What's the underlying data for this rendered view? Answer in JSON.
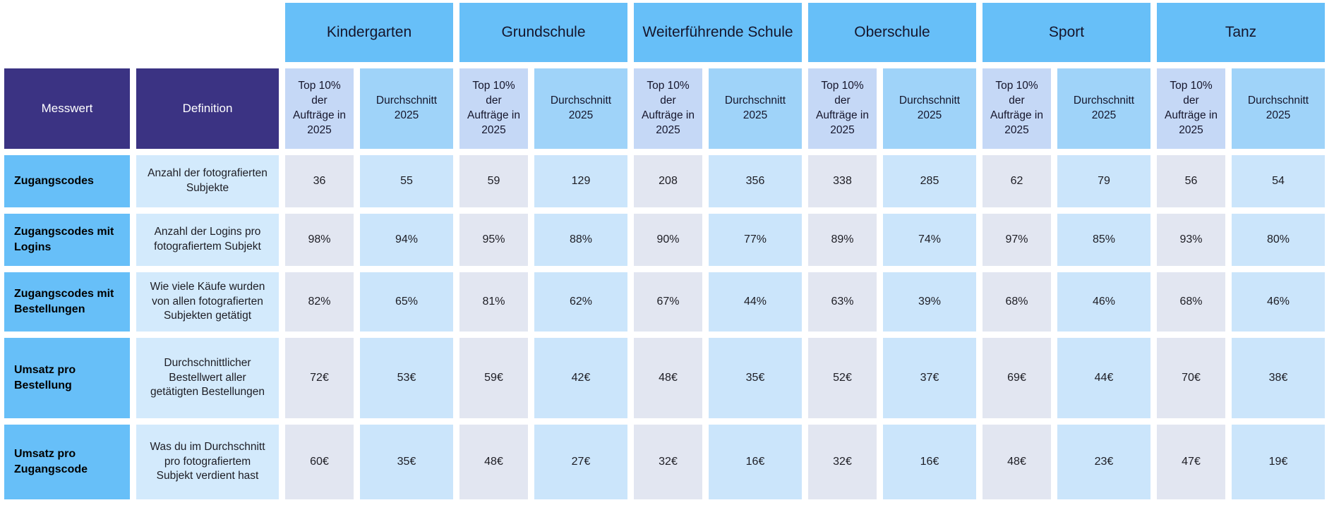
{
  "chart_data": {
    "type": "table",
    "corner_headers": {
      "measure": "Messwert",
      "definition": "Definition"
    },
    "groups": [
      "Kindergarten",
      "Grundschule",
      "Weiterführende Schule",
      "Oberschule",
      "Sport",
      "Tanz"
    ],
    "group_subcolumns": [
      "Top 10% der Aufträge in 2025",
      "Durchschnitt 2025"
    ],
    "rows": [
      {
        "measure": "Zugangscodes",
        "definition": "Anzahl der fotografierten Subjekte",
        "values": [
          "36",
          "55",
          "59",
          "129",
          "208",
          "356",
          "338",
          "285",
          "62",
          "79",
          "56",
          "54"
        ]
      },
      {
        "measure": "Zugangscodes mit Logins",
        "definition": "Anzahl der Logins pro fotografiertem Subjekt",
        "values": [
          "98%",
          "94%",
          "95%",
          "88%",
          "90%",
          "77%",
          "89%",
          "74%",
          "97%",
          "85%",
          "93%",
          "80%"
        ]
      },
      {
        "measure": "Zugangscodes mit Bestellungen",
        "definition": "Wie viele Käufe wurden von allen fotografierten Subjekten getätigt",
        "values": [
          "82%",
          "65%",
          "81%",
          "62%",
          "67%",
          "44%",
          "63%",
          "39%",
          "68%",
          "46%",
          "68%",
          "46%"
        ]
      },
      {
        "measure": "Umsatz pro Bestellung",
        "definition": "Durchschnittlicher Bestellwert aller getätigten Bestellungen",
        "values": [
          "72€",
          "53€",
          "59€",
          "42€",
          "48€",
          "35€",
          "52€",
          "37€",
          "69€",
          "44€",
          "70€",
          "38€"
        ]
      },
      {
        "measure": "Umsatz pro Zugangscode",
        "definition": "Was du im Durchschnitt pro fotografiertem Subjekt verdient hast",
        "values": [
          "60€",
          "35€",
          "48€",
          "27€",
          "32€",
          "16€",
          "32€",
          "16€",
          "48€",
          "23€",
          "47€",
          "19€"
        ]
      }
    ]
  },
  "colors": {
    "group_header_blue": "#67bff8",
    "corner_header_purple": "#3b3383",
    "subheader_top_lavender": "#c5d8f6",
    "subheader_avg_blue": "#9fd3f9",
    "measure_cell_blue": "#67bff8",
    "definition_cell_blue": "#d3eafc",
    "value_top_cell_gray": "#e2e6f1",
    "value_avg_cell_blue": "#cbe5fb",
    "background": "#ffffff"
  }
}
